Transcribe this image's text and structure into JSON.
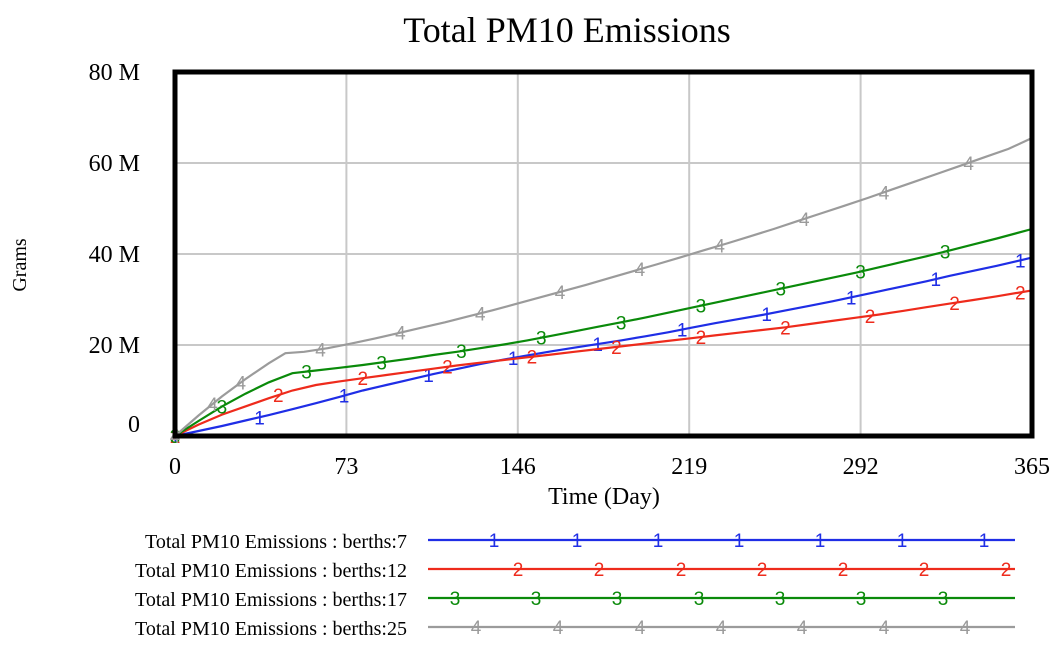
{
  "chart_data": {
    "type": "line",
    "title": "Total PM10 Emissions",
    "xlabel": "Time (Day)",
    "ylabel": "Grams",
    "xlim": [
      0,
      365
    ],
    "ylim": [
      0,
      80000000
    ],
    "x_ticks": [
      0,
      73,
      146,
      219,
      292,
      365
    ],
    "x_tick_labels": [
      "0",
      "73",
      "146",
      "219",
      "292",
      "365"
    ],
    "y_ticks": [
      0,
      20000000,
      40000000,
      60000000,
      80000000
    ],
    "y_tick_labels": [
      "0",
      "20 M",
      "40 M",
      "60 M",
      "80 M"
    ],
    "grid": true,
    "legend_position": "bottom",
    "series": [
      {
        "name": "Total PM10 Emissions : berths:7",
        "marker": "1",
        "color": "#1f2ee6",
        "x": [
          0,
          10,
          20,
          30,
          40,
          50,
          60,
          70,
          80,
          90,
          100,
          110,
          120,
          130,
          140,
          150,
          160,
          170,
          180,
          190,
          200,
          210,
          220,
          230,
          240,
          250,
          260,
          270,
          280,
          290,
          300,
          310,
          320,
          330,
          340,
          350,
          365
        ],
        "y": [
          0,
          1100000,
          2200000,
          3400000,
          4600000,
          5900000,
          7200000,
          8600000,
          10000000,
          11200000,
          12400000,
          13600000,
          14700000,
          15800000,
          16800000,
          17700000,
          18600000,
          19400000,
          20200000,
          21000000,
          21900000,
          22800000,
          23800000,
          24800000,
          25700000,
          26600000,
          27600000,
          28600000,
          29600000,
          30700000,
          31800000,
          32900000,
          34000000,
          35200000,
          36300000,
          37400000,
          39200000
        ],
        "marker_x": [
          0,
          36,
          72,
          108,
          144,
          180,
          216,
          252,
          288,
          324,
          360
        ]
      },
      {
        "name": "Total PM10 Emissions : berths:12",
        "marker": "2",
        "color": "#ee2b1c",
        "x": [
          0,
          10,
          20,
          30,
          40,
          50,
          60,
          70,
          80,
          90,
          100,
          110,
          120,
          130,
          140,
          150,
          160,
          170,
          180,
          190,
          200,
          210,
          220,
          230,
          240,
          250,
          260,
          270,
          280,
          290,
          300,
          310,
          320,
          330,
          340,
          350,
          365
        ],
        "y": [
          0,
          2500000,
          4700000,
          6500000,
          8300000,
          10000000,
          11200000,
          12000000,
          12700000,
          13400000,
          14100000,
          14800000,
          15500000,
          16100000,
          16700000,
          17300000,
          17900000,
          18500000,
          19100000,
          19700000,
          20300000,
          20900000,
          21500000,
          22100000,
          22700000,
          23300000,
          23900000,
          24600000,
          25300000,
          26000000,
          26700000,
          27500000,
          28300000,
          29100000,
          29900000,
          30700000,
          32000000
        ],
        "marker_x": [
          0,
          44,
          80,
          116,
          152,
          188,
          224,
          260,
          296,
          332,
          360
        ]
      },
      {
        "name": "Total PM10 Emissions : berths:17",
        "marker": "3",
        "color": "#0a8a0a",
        "x": [
          0,
          10,
          20,
          30,
          40,
          50,
          60,
          70,
          80,
          90,
          100,
          110,
          120,
          130,
          140,
          150,
          160,
          170,
          180,
          190,
          200,
          210,
          220,
          230,
          240,
          250,
          260,
          270,
          280,
          290,
          300,
          310,
          320,
          330,
          340,
          350,
          365
        ],
        "y": [
          0,
          3300000,
          6500000,
          9300000,
          11800000,
          13800000,
          14400000,
          15000000,
          15600000,
          16300000,
          17000000,
          17800000,
          18500000,
          19300000,
          20100000,
          21000000,
          22000000,
          23000000,
          24000000,
          25000000,
          26000000,
          27100000,
          28200000,
          29300000,
          30400000,
          31500000,
          32600000,
          33700000,
          34800000,
          35900000,
          37100000,
          38300000,
          39500000,
          40800000,
          42100000,
          43400000,
          45500000
        ],
        "marker_x": [
          0,
          20,
          56,
          88,
          122,
          156,
          190,
          224,
          258,
          292,
          328
        ]
      },
      {
        "name": "Total PM10 Emissions : berths:25",
        "marker": "4",
        "color": "#9b9b9b",
        "x": [
          0,
          10,
          20,
          30,
          40,
          47,
          55,
          65,
          75,
          85,
          95,
          105,
          115,
          125,
          135,
          145,
          155,
          165,
          175,
          185,
          195,
          205,
          215,
          225,
          235,
          245,
          255,
          265,
          275,
          285,
          295,
          305,
          315,
          325,
          335,
          345,
          355,
          365
        ],
        "y": [
          0,
          4500000,
          8700000,
          12500000,
          16000000,
          18200000,
          18500000,
          19300000,
          20300000,
          21400000,
          22600000,
          23800000,
          25000000,
          26300000,
          27600000,
          29000000,
          30400000,
          31800000,
          33200000,
          34700000,
          36200000,
          37700000,
          39200000,
          40800000,
          42300000,
          43900000,
          45500000,
          47200000,
          48900000,
          50600000,
          52300000,
          54100000,
          55900000,
          57700000,
          59500000,
          61300000,
          63100000,
          65500000
        ],
        "marker_x": [
          0,
          16,
          28,
          62,
          96,
          130,
          164,
          198,
          232,
          268,
          302,
          338
        ]
      }
    ]
  }
}
